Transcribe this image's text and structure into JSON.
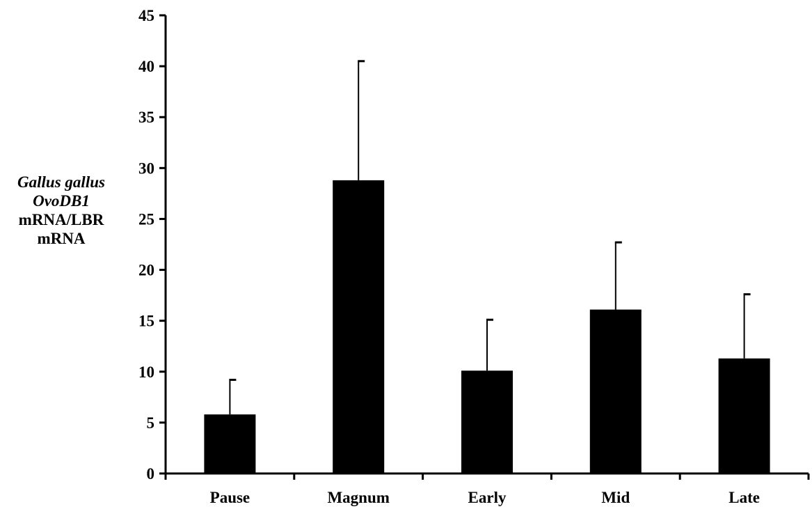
{
  "chart_data": {
    "type": "bar",
    "categories": [
      "Pause",
      "Magnum",
      "Early",
      "Mid",
      "Late"
    ],
    "series": [
      {
        "values": [
          5.8,
          28.8,
          10.1,
          16.1,
          11.3
        ],
        "error_plus": [
          3.4,
          11.7,
          5.0,
          6.6,
          6.3
        ]
      }
    ],
    "ylabel_lines": [
      "Gallus gallus",
      "OvoDB1",
      "mRNA/LBR",
      "mRNA"
    ],
    "ylim": [
      0,
      45
    ],
    "yticks": [
      "0",
      "5",
      "10",
      "15",
      "20",
      "25",
      "30",
      "35",
      "40",
      "45"
    ],
    "grid": false,
    "bar_color": "#000000"
  }
}
